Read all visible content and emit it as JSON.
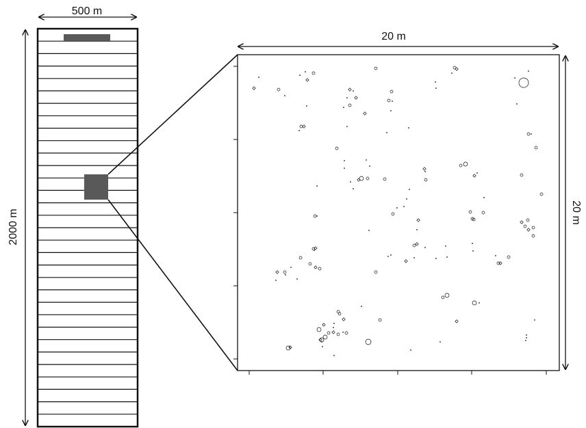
{
  "labels": {
    "strip_width": "500 m",
    "strip_length": "2000 m",
    "plot_width": "20 m",
    "plot_height": "20 m"
  },
  "strip": {
    "line_count": 32
  },
  "colors": {
    "ink": "#111111",
    "fill_dark": "#595959",
    "background": "#ffffff"
  },
  "plot": {
    "points": [
      [
        378,
        113,
        1
      ],
      [
        371,
        129,
        2
      ],
      [
        407,
        131,
        2
      ],
      [
        416,
        140,
        1
      ],
      [
        438,
        110,
        1
      ],
      [
        446,
        105,
        1
      ],
      [
        458,
        107,
        2
      ],
      [
        449,
        117,
        2
      ],
      [
        448,
        155,
        1
      ],
      [
        549,
        100,
        2
      ],
      [
        511,
        131,
        2
      ],
      [
        516,
        133,
        1
      ],
      [
        507,
        143,
        1
      ],
      [
        520,
        143,
        2
      ],
      [
        511,
        154,
        2
      ],
      [
        502,
        157,
        1
      ],
      [
        533,
        166,
        2
      ],
      [
        572,
        134,
        2
      ],
      [
        568,
        147,
        2
      ],
      [
        573,
        148,
        1
      ],
      [
        571,
        162,
        1
      ],
      [
        664,
        99,
        2
      ],
      [
        667,
        101,
        2
      ],
      [
        660,
        107,
        1
      ],
      [
        636,
        120,
        1
      ],
      [
        637,
        129,
        1
      ],
      [
        752,
        114,
        1
      ],
      [
        765,
        121,
        7
      ],
      [
        772,
        104,
        1
      ],
      [
        755,
        152,
        1
      ],
      [
        440,
        185,
        2
      ],
      [
        444,
        185,
        2
      ],
      [
        437,
        191,
        1
      ],
      [
        507,
        185,
        1
      ],
      [
        565,
        194,
        1
      ],
      [
        597,
        187,
        1
      ],
      [
        772,
        196,
        2
      ],
      [
        776,
        196,
        1
      ],
      [
        492,
        217,
        2
      ],
      [
        783,
        216,
        2
      ],
      [
        503,
        235,
        1
      ],
      [
        535,
        234,
        1
      ],
      [
        503,
        246,
        1
      ],
      [
        540,
        243,
        1
      ],
      [
        673,
        242,
        2
      ],
      [
        680,
        240,
        3
      ],
      [
        620,
        247,
        2
      ],
      [
        621,
        251,
        1
      ],
      [
        762,
        256,
        2
      ],
      [
        524,
        263,
        2
      ],
      [
        528,
        261,
        3
      ],
      [
        537,
        261,
        2
      ],
      [
        512,
        266,
        1
      ],
      [
        562,
        262,
        2
      ],
      [
        622,
        263,
        2
      ],
      [
        693,
        257,
        2
      ],
      [
        697,
        253,
        1
      ],
      [
        463,
        272,
        1
      ],
      [
        516,
        276,
        1
      ],
      [
        598,
        277,
        1
      ],
      [
        791,
        284,
        2
      ],
      [
        594,
        291,
        1
      ],
      [
        707,
        289,
        1
      ],
      [
        580,
        304,
        1
      ],
      [
        590,
        302,
        1
      ],
      [
        574,
        313,
        2
      ],
      [
        460,
        316,
        2
      ],
      [
        463,
        316,
        1
      ],
      [
        687,
        310,
        2
      ],
      [
        706,
        311,
        2
      ],
      [
        611,
        322,
        2
      ],
      [
        690,
        320,
        2
      ],
      [
        692,
        321,
        2
      ],
      [
        762,
        325,
        2
      ],
      [
        771,
        322,
        2
      ],
      [
        767,
        331,
        2
      ],
      [
        772,
        336,
        2
      ],
      [
        779,
        333,
        2
      ],
      [
        779,
        345,
        2
      ],
      [
        539,
        337,
        1
      ],
      [
        609,
        336,
        1
      ],
      [
        605,
        359,
        2
      ],
      [
        609,
        357,
        2
      ],
      [
        621,
        362,
        1
      ],
      [
        571,
        373,
        1
      ],
      [
        567,
        375,
        1
      ],
      [
        651,
        360,
        1
      ],
      [
        690,
        356,
        1
      ],
      [
        691,
        367,
        1
      ],
      [
        439,
        377,
        2
      ],
      [
        458,
        364,
        2
      ],
      [
        461,
        363,
        2
      ],
      [
        459,
        366,
        1
      ],
      [
        453,
        386,
        2
      ],
      [
        461,
        391,
        2
      ],
      [
        467,
        393,
        2
      ],
      [
        425,
        391,
        1
      ],
      [
        405,
        398,
        2
      ],
      [
        416,
        398,
        2
      ],
      [
        417,
        402,
        1
      ],
      [
        403,
        410,
        1
      ],
      [
        434,
        408,
        1
      ],
      [
        549,
        398,
        2
      ],
      [
        593,
        382,
        2
      ],
      [
        605,
        377,
        1
      ],
      [
        637,
        378,
        1
      ],
      [
        653,
        376,
        1
      ],
      [
        724,
        374,
        1
      ],
      [
        728,
        385,
        2
      ],
      [
        731,
        385,
        2
      ],
      [
        743,
        376,
        2
      ],
      [
        647,
        435,
        2
      ],
      [
        653,
        432,
        3
      ],
      [
        693,
        443,
        3
      ],
      [
        700,
        443,
        1
      ],
      [
        528,
        448,
        1
      ],
      [
        494,
        456,
        2
      ],
      [
        496,
        459,
        2
      ],
      [
        502,
        467,
        2
      ],
      [
        488,
        473,
        1
      ],
      [
        555,
        468,
        2
      ],
      [
        667,
        470,
        2
      ],
      [
        781,
        468,
        1
      ],
      [
        466,
        482,
        3
      ],
      [
        473,
        475,
        2
      ],
      [
        487,
        479,
        1
      ],
      [
        480,
        487,
        2
      ],
      [
        487,
        486,
        2
      ],
      [
        494,
        489,
        2
      ],
      [
        506,
        487,
        2
      ],
      [
        501,
        486,
        1
      ],
      [
        475,
        493,
        3
      ],
      [
        470,
        497,
        3
      ],
      [
        468,
        497,
        2
      ],
      [
        470,
        500,
        1
      ],
      [
        538,
        500,
        4
      ],
      [
        424,
        508,
        2
      ],
      [
        421,
        509,
        3
      ],
      [
        471,
        507,
        1
      ],
      [
        600,
        512,
        1
      ],
      [
        488,
        520,
        1
      ],
      [
        643,
        500,
        1
      ],
      [
        769,
        490,
        1
      ],
      [
        769,
        494,
        1
      ],
      [
        768,
        498,
        1
      ]
    ]
  }
}
